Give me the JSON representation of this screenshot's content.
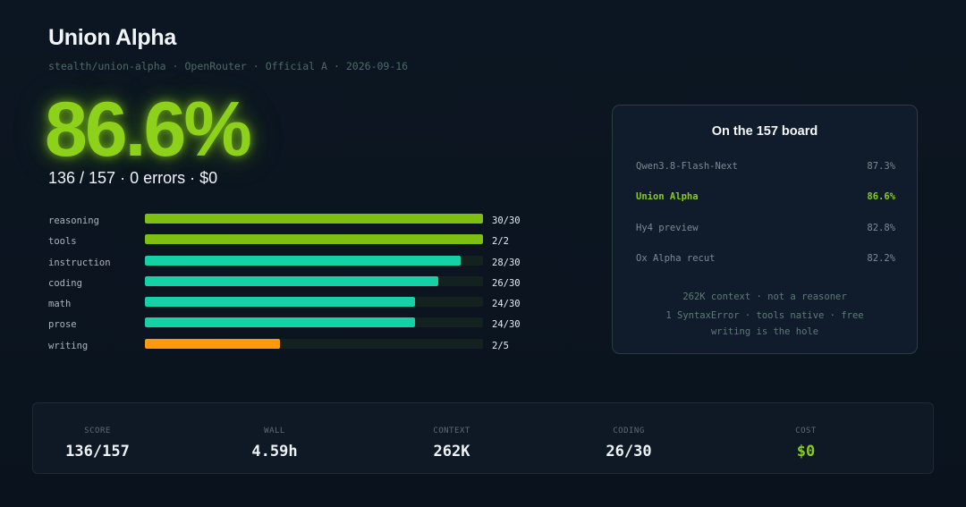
{
  "header": {
    "title": "Union Alpha",
    "meta": [
      "stealth/union-alpha",
      "OpenRouter",
      "Official A",
      "2026-09-16"
    ],
    "meta_sep": "·"
  },
  "headline": {
    "score_pct": "86.6%",
    "passed": "136 / 157",
    "errors": "0 errors",
    "cost": "$0",
    "sep": "·"
  },
  "categories": [
    {
      "label": "reasoning",
      "score": "30/30",
      "fraction": 1.0,
      "color": "#7fbf12"
    },
    {
      "label": "tools",
      "score": "2/2",
      "fraction": 1.0,
      "color": "#7fbf12"
    },
    {
      "label": "instruction",
      "score": "28/30",
      "fraction": 0.933,
      "color": "#14d1a6"
    },
    {
      "label": "coding",
      "score": "26/30",
      "fraction": 0.867,
      "color": "#14d1a6"
    },
    {
      "label": "math",
      "score": "24/30",
      "fraction": 0.8,
      "color": "#14d1a6"
    },
    {
      "label": "prose",
      "score": "24/30",
      "fraction": 0.8,
      "color": "#14d1a6"
    },
    {
      "label": "writing",
      "score": "2/5",
      "fraction": 0.4,
      "color": "#ff9a0a"
    }
  ],
  "board": {
    "title": "On the 157 board",
    "rows": [
      {
        "name": "Qwen3.8-Flash-Next",
        "pct": "87.3%",
        "highlight": false
      },
      {
        "name": "Union Alpha",
        "pct": "86.6%",
        "highlight": true
      },
      {
        "name": "Hy4 preview",
        "pct": "82.8%",
        "highlight": false
      },
      {
        "name": "Ox Alpha recut",
        "pct": "82.2%",
        "highlight": false
      }
    ],
    "notes": [
      "262K context · not a reasoner",
      "1 SyntaxError · tools native · free",
      "writing is the hole"
    ]
  },
  "stats": [
    {
      "label": "SCORE",
      "value": "136/157",
      "accent": false
    },
    {
      "label": "WALL",
      "value": "4.59h",
      "accent": false
    },
    {
      "label": "CONTEXT",
      "value": "262K",
      "accent": false
    },
    {
      "label": "CODING",
      "value": "26/30",
      "accent": false
    },
    {
      "label": "COST",
      "value": "$0",
      "accent": true
    }
  ]
}
